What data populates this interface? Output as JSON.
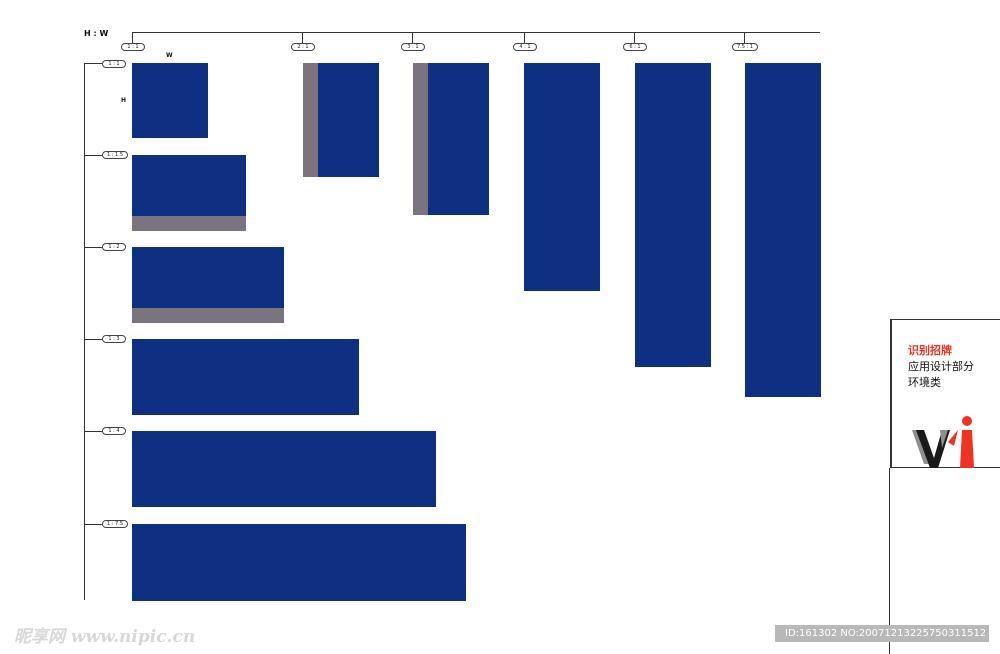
{
  "labels": {
    "hw": "H : W",
    "w": "W",
    "h": "H"
  },
  "top_ratios": [
    "1 : 1",
    "2 : 1",
    "3 : 1",
    "4 : 1",
    "6 : 1",
    "7.5 : 1"
  ],
  "side_ratios": [
    "1 : 1",
    "1 : 1.5",
    "1 : 2",
    "1 : 3",
    "1 : 4",
    "1 : 7.5"
  ],
  "panel": {
    "line1": "识别招牌",
    "line2": "应用设计部分",
    "line3": "环境类",
    "logo_text": "vi"
  },
  "watermark": {
    "site": "昵享网 www.nipic.cn",
    "id_text": "ID:161302 NO:20071213225750311512"
  },
  "colors": {
    "panel_color": "#0e2f82",
    "strip_color": "#7b747f",
    "accent": "#ee3322"
  }
}
